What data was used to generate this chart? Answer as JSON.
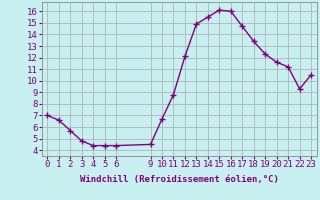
{
  "x": [
    0,
    1,
    2,
    3,
    4,
    5,
    6,
    9,
    10,
    11,
    12,
    13,
    14,
    15,
    16,
    17,
    18,
    19,
    20,
    21,
    22,
    23
  ],
  "y": [
    7.0,
    6.6,
    5.7,
    4.8,
    4.4,
    4.4,
    4.4,
    4.5,
    6.7,
    8.8,
    12.1,
    14.9,
    15.5,
    16.1,
    16.0,
    14.7,
    13.4,
    12.3,
    11.6,
    11.2,
    9.3,
    10.5
  ],
  "line_color": "#800080",
  "marker": "+",
  "marker_size": 4,
  "bg_color": "#c8f0f0",
  "grid_color": "#aaaaaa",
  "xlabel": "Windchill (Refroidissement éolien,°C)",
  "tick_color": "#800080",
  "xlim": [
    -0.5,
    23.5
  ],
  "ylim": [
    3.5,
    16.8
  ],
  "yticks": [
    4,
    5,
    6,
    7,
    8,
    9,
    10,
    11,
    12,
    13,
    14,
    15,
    16
  ],
  "xticks": [
    0,
    1,
    2,
    3,
    4,
    5,
    6,
    9,
    10,
    11,
    12,
    13,
    14,
    15,
    16,
    17,
    18,
    19,
    20,
    21,
    22,
    23
  ],
  "font_size": 6.5,
  "line_width": 1.0
}
